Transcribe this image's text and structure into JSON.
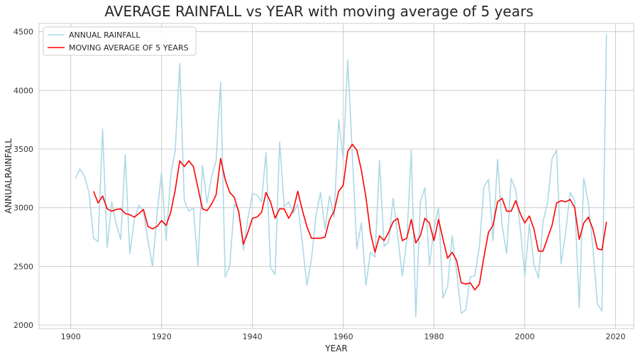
{
  "chart_data": {
    "type": "line",
    "title": "AVERAGE RAINFALL vs YEAR with moving average of 5 years",
    "xlabel": "YEAR",
    "ylabel": "ANNUALRAINFALL",
    "xlim": [
      1893,
      2024
    ],
    "ylim": [
      1970,
      4570
    ],
    "xticks": [
      1900,
      1920,
      1940,
      1960,
      1980,
      2000,
      2020
    ],
    "yticks": [
      2000,
      2500,
      3000,
      3500,
      4000,
      4500
    ],
    "grid": true,
    "legend_position": "top-left",
    "colors": {
      "annual": "#add8e6",
      "moving": "#ff0000",
      "grid": "#cccccc",
      "frame": "#cccccc"
    },
    "series": [
      {
        "name": "ANNUAL RAINFALL",
        "x": [
          1901,
          1902,
          1903,
          1904,
          1905,
          1906,
          1907,
          1908,
          1909,
          1910,
          1911,
          1912,
          1913,
          1914,
          1915,
          1916,
          1917,
          1918,
          1919,
          1920,
          1921,
          1922,
          1923,
          1924,
          1925,
          1926,
          1927,
          1928,
          1929,
          1930,
          1931,
          1932,
          1933,
          1934,
          1935,
          1936,
          1937,
          1938,
          1939,
          1940,
          1941,
          1942,
          1943,
          1944,
          1945,
          1946,
          1947,
          1948,
          1949,
          1950,
          1951,
          1952,
          1953,
          1954,
          1955,
          1956,
          1957,
          1958,
          1959,
          1960,
          1961,
          1962,
          1963,
          1964,
          1965,
          1966,
          1967,
          1968,
          1969,
          1970,
          1971,
          1972,
          1973,
          1974,
          1975,
          1976,
          1977,
          1978,
          1979,
          1980,
          1981,
          1982,
          1983,
          1984,
          1985,
          1986,
          1987,
          1988,
          1989,
          1990,
          1991,
          1992,
          1993,
          1994,
          1995,
          1996,
          1997,
          1998,
          1999,
          2000,
          2001,
          2002,
          2003,
          2004,
          2005,
          2006,
          2007,
          2008,
          2009,
          2010,
          2011,
          2012,
          2013,
          2014,
          2015,
          2016,
          2017,
          2018
        ],
        "values": [
          3250,
          3330,
          3270,
          3130,
          2740,
          2710,
          3670,
          2660,
          3050,
          2860,
          2730,
          3450,
          2610,
          2900,
          3020,
          2970,
          2720,
          2500,
          2950,
          3300,
          2720,
          3270,
          3490,
          4230,
          3060,
          2970,
          3000,
          2500,
          3360,
          3040,
          3260,
          3400,
          4070,
          2410,
          2500,
          3030,
          2980,
          2640,
          2910,
          3120,
          3110,
          3050,
          3470,
          2490,
          2430,
          3560,
          3010,
          3050,
          2950,
          3030,
          2700,
          2340,
          2560,
          2930,
          3130,
          2820,
          3100,
          2920,
          3750,
          3420,
          4260,
          3460,
          2650,
          2870,
          2340,
          2620,
          2580,
          3400,
          2670,
          2710,
          3080,
          2760,
          2420,
          2720,
          3490,
          2070,
          3050,
          3170,
          2510,
          2820,
          3000,
          2230,
          2330,
          2760,
          2450,
          2100,
          2130,
          2410,
          2420,
          2670,
          3180,
          3240,
          2720,
          3410,
          2850,
          2610,
          3250,
          3150,
          2830,
          2420,
          2860,
          2520,
          2400,
          2880,
          3040,
          3420,
          3490,
          2520,
          2790,
          3130,
          3060,
          2150,
          3250,
          3040,
          2660,
          2180,
          2120,
          4480
        ]
      },
      {
        "name": "MOVING AVERAGE OF 5 YEARS",
        "x": [
          1905,
          1906,
          1907,
          1908,
          1909,
          1910,
          1911,
          1912,
          1913,
          1914,
          1915,
          1916,
          1917,
          1918,
          1919,
          1920,
          1921,
          1922,
          1923,
          1924,
          1925,
          1926,
          1927,
          1928,
          1929,
          1930,
          1931,
          1932,
          1933,
          1934,
          1935,
          1936,
          1937,
          1938,
          1939,
          1940,
          1941,
          1942,
          1943,
          1944,
          1945,
          1946,
          1947,
          1948,
          1949,
          1950,
          1951,
          1952,
          1953,
          1954,
          1955,
          1956,
          1957,
          1958,
          1959,
          1960,
          1961,
          1962,
          1963,
          1964,
          1965,
          1966,
          1967,
          1968,
          1969,
          1970,
          1971,
          1972,
          1973,
          1974,
          1975,
          1976,
          1977,
          1978,
          1979,
          1980,
          1981,
          1982,
          1983,
          1984,
          1985,
          1986,
          1987,
          1988,
          1989,
          1990,
          1991,
          1992,
          1993,
          1994,
          1995,
          1996,
          1997,
          1998,
          1999,
          2000,
          2001,
          2002,
          2003,
          2004,
          2005,
          2006,
          2007,
          2008,
          2009,
          2010,
          2011,
          2012,
          2013,
          2014,
          2015,
          2016,
          2017,
          2018
        ],
        "values": [
          3140,
          3040,
          3100,
          2990,
          2970,
          2985,
          2990,
          2950,
          2940,
          2920,
          2950,
          2985,
          2840,
          2820,
          2840,
          2890,
          2850,
          2960,
          3150,
          3400,
          3350,
          3400,
          3350,
          3170,
          2990,
          2975,
          3030,
          3110,
          3420,
          3240,
          3130,
          3090,
          2960,
          2690,
          2790,
          2910,
          2920,
          2960,
          3130,
          3050,
          2910,
          2990,
          2990,
          2910,
          2980,
          3140,
          2980,
          2840,
          2740,
          2740,
          2740,
          2750,
          2900,
          2970,
          3140,
          3190,
          3480,
          3540,
          3490,
          3320,
          3090,
          2790,
          2620,
          2760,
          2720,
          2790,
          2880,
          2910,
          2720,
          2740,
          2900,
          2700,
          2760,
          2910,
          2870,
          2720,
          2900,
          2730,
          2570,
          2620,
          2550,
          2360,
          2350,
          2360,
          2300,
          2350,
          2580,
          2790,
          2850,
          3050,
          3080,
          2970,
          2970,
          3060,
          2950,
          2870,
          2930,
          2820,
          2630,
          2630,
          2740,
          2850,
          3040,
          3060,
          3050,
          3070,
          3000,
          2730,
          2870,
          2920,
          2820,
          2650,
          2640,
          2880
        ]
      }
    ]
  }
}
